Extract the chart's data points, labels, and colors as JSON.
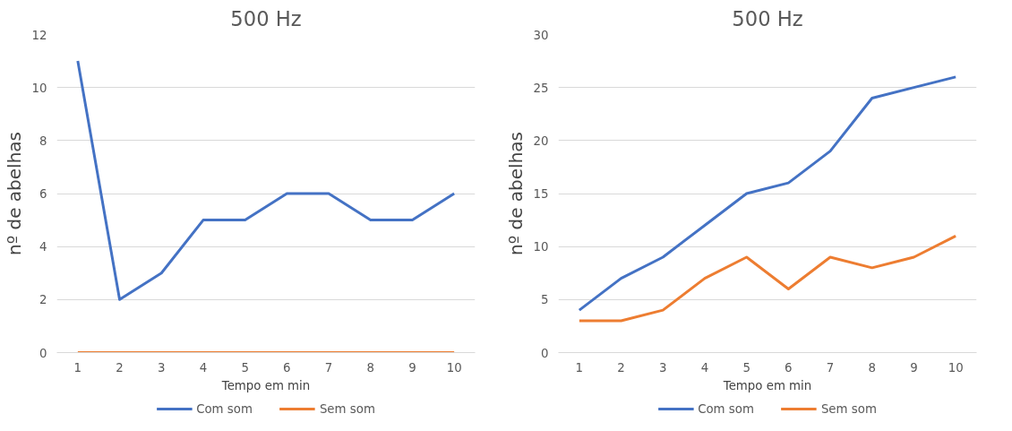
{
  "chart_data": [
    {
      "type": "line",
      "title": "500 Hz",
      "xlabel": "Tempo em min",
      "ylabel": "nº de abelhas",
      "categories": [
        "1",
        "2",
        "3",
        "4",
        "5",
        "6",
        "7",
        "8",
        "9",
        "10"
      ],
      "ylim": [
        0,
        12
      ],
      "yticks": [
        0,
        2,
        4,
        6,
        8,
        10,
        12
      ],
      "grid": "y",
      "legend": "bottom",
      "series": [
        {
          "name": "Com som",
          "color": "#4472c4",
          "values": [
            11,
            2,
            3,
            5,
            5,
            6,
            6,
            5,
            5,
            6
          ]
        },
        {
          "name": "Sem som",
          "color": "#ed7d31",
          "values": [
            0,
            0,
            0,
            0,
            0,
            0,
            0,
            0,
            0,
            0
          ]
        }
      ]
    },
    {
      "type": "line",
      "title": "500 Hz",
      "xlabel": "Tempo em min",
      "ylabel": "nº de abelhas",
      "categories": [
        "1",
        "2",
        "3",
        "4",
        "5",
        "6",
        "7",
        "8",
        "9",
        "10"
      ],
      "ylim": [
        0,
        30
      ],
      "yticks": [
        0,
        5,
        10,
        15,
        20,
        25,
        30
      ],
      "grid": "y",
      "legend": "bottom",
      "series": [
        {
          "name": "Com som",
          "color": "#4472c4",
          "values": [
            4,
            7,
            9,
            12,
            15,
            16,
            19,
            24,
            25,
            26
          ]
        },
        {
          "name": "Sem som",
          "color": "#ed7d31",
          "values": [
            3,
            3,
            4,
            7,
            9,
            6,
            9,
            8,
            9,
            11
          ]
        }
      ]
    }
  ]
}
